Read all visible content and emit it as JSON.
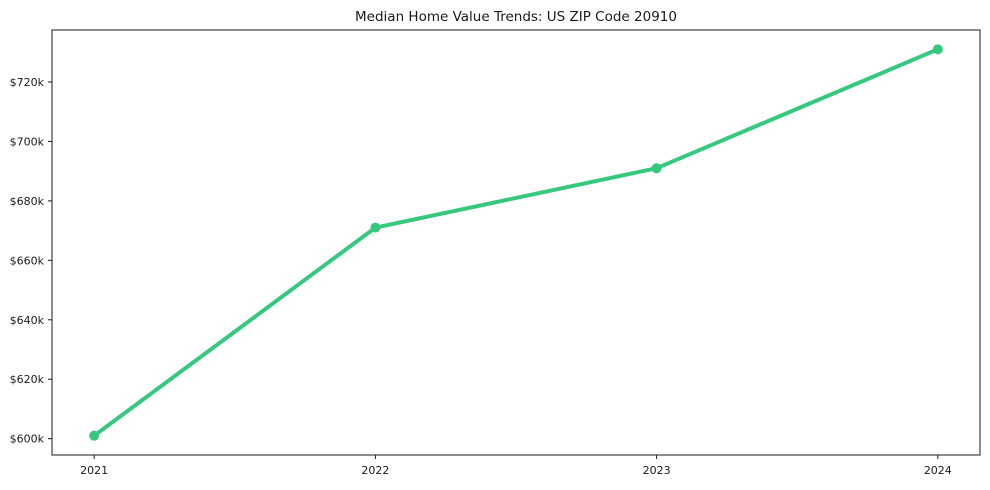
{
  "chart_data": {
    "type": "line",
    "title": "Median Home Value Trends: US ZIP Code 20910",
    "x": [
      2021,
      2022,
      2023,
      2024
    ],
    "series": [
      {
        "name": "Median Home Value",
        "values_usd": [
          601000,
          671000,
          691000,
          731000
        ],
        "values_k": [
          601,
          671,
          691,
          731
        ]
      }
    ],
    "xticks": [
      {
        "value": 2021,
        "label": "2021"
      },
      {
        "value": 2022,
        "label": "2022"
      },
      {
        "value": 2023,
        "label": "2023"
      },
      {
        "value": 2024,
        "label": "2024"
      }
    ],
    "yticks": [
      {
        "value": 600,
        "label": "$600k"
      },
      {
        "value": 620,
        "label": "$620k"
      },
      {
        "value": 640,
        "label": "$640k"
      },
      {
        "value": 660,
        "label": "$660k"
      },
      {
        "value": 680,
        "label": "$680k"
      },
      {
        "value": 700,
        "label": "$700k"
      },
      {
        "value": 720,
        "label": "$720k"
      }
    ],
    "xlabel": "",
    "ylabel": "",
    "xlim": [
      2020.85,
      2024.15
    ],
    "ylim_k": [
      594.5,
      737.5
    ],
    "grid": false,
    "legend": "none",
    "colors": {
      "line": "#36c97e",
      "marker": "#36c97e",
      "spine": "#1a1a1a",
      "tick_text": "#1a1a1a",
      "background": "#ffffff"
    },
    "style": {
      "line_width": 4,
      "marker_radius": 5,
      "tick_length": 4
    }
  }
}
